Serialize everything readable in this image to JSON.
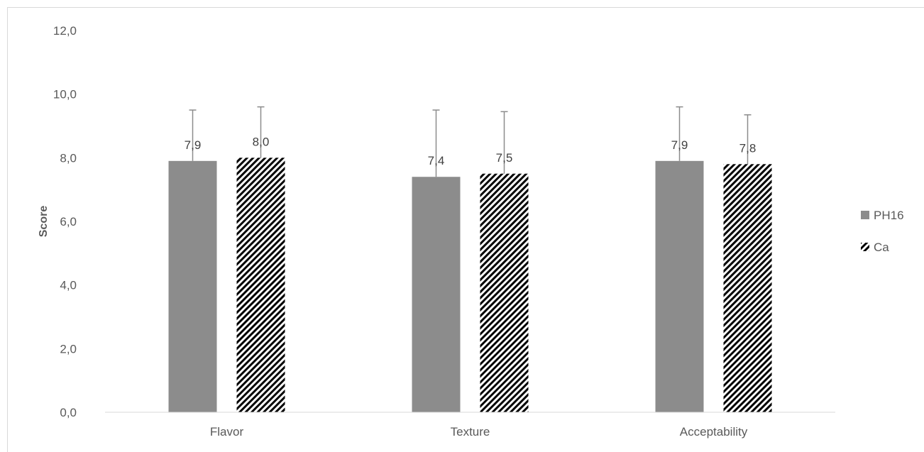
{
  "chart_data": {
    "type": "bar",
    "categories": [
      "Flavor",
      "Texture",
      "Acceptability"
    ],
    "series": [
      {
        "name": "PH16",
        "values": [
          7.9,
          7.4,
          7.9
        ],
        "error": [
          1.6,
          2.1,
          1.7
        ],
        "labels": [
          "7,9",
          "7,4",
          "7,9"
        ],
        "color": "#8c8c8c",
        "pattern": "solid"
      },
      {
        "name": "Ca",
        "values": [
          8.0,
          7.5,
          7.8
        ],
        "error": [
          1.6,
          1.95,
          1.55
        ],
        "labels": [
          "8,0",
          "7,5",
          "7,8"
        ],
        "color": "#000000",
        "pattern": "diagonal-stripes"
      }
    ],
    "xlabel": "",
    "ylabel": "Score",
    "ylim": [
      0,
      12
    ],
    "yticks": [
      0,
      2,
      4,
      6,
      8,
      10,
      12
    ],
    "ytick_labels": [
      "0,0",
      "2,0",
      "4,0",
      "6,0",
      "8,0",
      "10,0",
      "12,0"
    ],
    "grid": false,
    "legend_position": "right",
    "error_bar_color": "#8c8c8c"
  }
}
